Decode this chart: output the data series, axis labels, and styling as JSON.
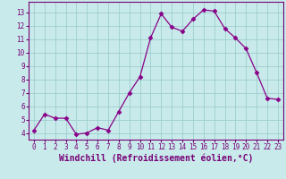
{
  "x": [
    0,
    1,
    2,
    3,
    4,
    5,
    6,
    7,
    8,
    9,
    10,
    11,
    12,
    13,
    14,
    15,
    16,
    17,
    18,
    19,
    20,
    21,
    22,
    23
  ],
  "y": [
    4.2,
    5.4,
    5.1,
    5.1,
    3.9,
    4.0,
    4.4,
    4.2,
    5.6,
    7.0,
    8.2,
    11.1,
    12.9,
    11.9,
    11.6,
    12.5,
    13.2,
    13.1,
    11.8,
    11.1,
    10.3,
    8.5,
    6.6,
    6.5
  ],
  "line_color": "#880088",
  "marker": "D",
  "marker_size": 2.5,
  "bg_color": "#c8eaea",
  "grid_color": "#9ecece",
  "xlabel": "Windchill (Refroidissement éolien,°C)",
  "ylim": [
    3.5,
    13.8
  ],
  "yticks": [
    4,
    5,
    6,
    7,
    8,
    9,
    10,
    11,
    12,
    13
  ],
  "xticks": [
    0,
    1,
    2,
    3,
    4,
    5,
    6,
    7,
    8,
    9,
    10,
    11,
    12,
    13,
    14,
    15,
    16,
    17,
    18,
    19,
    20,
    21,
    22,
    23
  ],
  "tick_fontsize": 5.5,
  "xlabel_fontsize": 7.0,
  "axis_color": "#770077",
  "spine_color": "#770077"
}
